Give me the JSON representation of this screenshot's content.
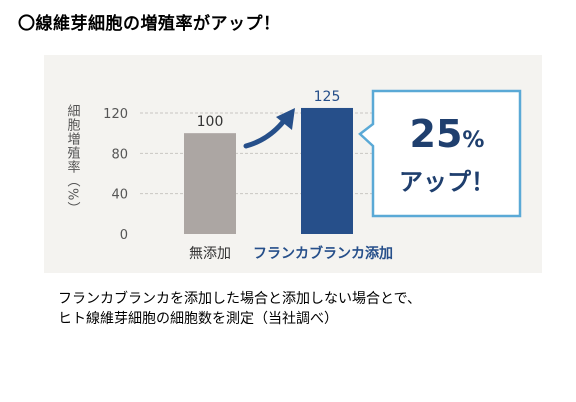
{
  "heading": "〇線維芽細胞の増殖率がアップ！",
  "chart_data": {
    "type": "bar",
    "ylabel": "細胞増殖率（%）",
    "ylim": [
      0,
      120
    ],
    "yticks": [
      0,
      40,
      80,
      120
    ],
    "categories": [
      "無添加",
      "フランカブランカ添加"
    ],
    "values": [
      100,
      125
    ],
    "bar_colors": [
      "#aca6a3",
      "#264f8a"
    ],
    "label_colors": [
      "#333333",
      "#264f8a"
    ],
    "annotation": {
      "percent_number": "25",
      "percent_sign": "%",
      "text": "アップ！",
      "border_color": "#5aa9d6",
      "text_color": "#1f3f6e"
    }
  },
  "caption": {
    "line1": "フランカブランカを添加した場合と添加しない場合とで、",
    "line2": "ヒト線維芽細胞の細胞数を測定（当社調べ）"
  }
}
